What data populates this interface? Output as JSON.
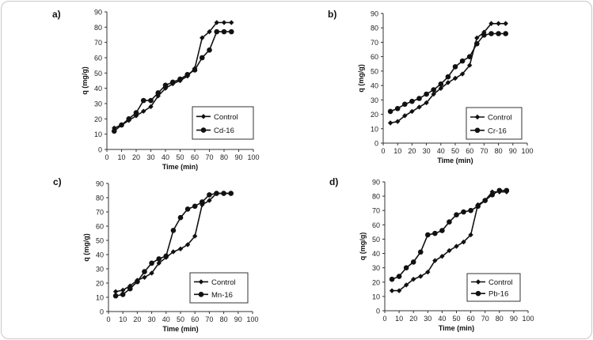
{
  "colors": {
    "line": "#111111",
    "frame": "#c8c8c8"
  },
  "chart_data": [
    {
      "panel_label": "a)",
      "type": "line",
      "xlabel": "Time (min)",
      "ylabel": "q (mg/g)",
      "xlim": [
        0,
        100
      ],
      "ylim": [
        0,
        90
      ],
      "xticks": [
        "0",
        "10",
        "20",
        "30",
        "40",
        "50",
        "60",
        "70",
        "80",
        "90",
        "100"
      ],
      "yticks": [
        "0",
        "10",
        "20",
        "30",
        "40",
        "50",
        "60",
        "70",
        "80",
        "90"
      ],
      "legend_position": "bottom-right",
      "series": [
        {
          "name": "Control",
          "marker": "diamond",
          "x": [
            5,
            10,
            15,
            20,
            25,
            30,
            35,
            40,
            45,
            50,
            55,
            60,
            65,
            70,
            75,
            80,
            85
          ],
          "y": [
            14,
            16,
            19,
            22,
            25,
            28,
            35,
            40,
            43,
            45,
            48,
            53,
            73,
            77,
            83,
            83,
            83
          ]
        },
        {
          "name": "Cd-16",
          "marker": "circle",
          "x": [
            5,
            10,
            15,
            20,
            25,
            30,
            35,
            40,
            45,
            50,
            55,
            60,
            65,
            70,
            75,
            80,
            85
          ],
          "y": [
            12,
            16,
            20,
            24,
            32,
            32,
            37,
            42,
            44,
            46,
            49,
            52,
            60,
            65,
            77,
            77,
            77
          ]
        }
      ]
    },
    {
      "panel_label": "b)",
      "type": "line",
      "xlabel": "Time (min)",
      "ylabel": "q (mg/g)",
      "xlim": [
        0,
        100
      ],
      "ylim": [
        0,
        90
      ],
      "xticks": [
        "0",
        "10",
        "20",
        "30",
        "40",
        "50",
        "60",
        "70",
        "80",
        "90",
        "100"
      ],
      "yticks": [
        "0",
        "10",
        "20",
        "30",
        "40",
        "50",
        "60",
        "70",
        "80",
        "90"
      ],
      "legend_position": "bottom-right",
      "series": [
        {
          "name": "Control",
          "marker": "diamond",
          "x": [
            5,
            10,
            15,
            20,
            25,
            30,
            35,
            40,
            45,
            50,
            55,
            60,
            65,
            70,
            75,
            80,
            85
          ],
          "y": [
            14,
            15,
            19,
            22,
            25,
            28,
            34,
            38,
            42,
            45,
            48,
            54,
            73,
            77,
            83,
            83,
            83
          ]
        },
        {
          "name": "Cr-16",
          "marker": "circle",
          "x": [
            5,
            10,
            15,
            20,
            25,
            30,
            35,
            40,
            45,
            50,
            55,
            60,
            65,
            70,
            75,
            80,
            85
          ],
          "y": [
            22,
            24,
            27,
            29,
            31,
            34,
            37,
            41,
            46,
            53,
            57,
            60,
            69,
            75,
            76,
            76,
            76
          ]
        }
      ]
    },
    {
      "panel_label": "c)",
      "type": "line",
      "xlabel": "Time (min)",
      "ylabel": "q (mg/g)",
      "xlim": [
        0,
        100
      ],
      "ylim": [
        0,
        90
      ],
      "xticks": [
        "0",
        "10",
        "20",
        "30",
        "40",
        "50",
        "60",
        "70",
        "80",
        "90",
        "100"
      ],
      "yticks": [
        "0",
        "10",
        "20",
        "30",
        "40",
        "50",
        "60",
        "70",
        "80",
        "90"
      ],
      "legend_position": "bottom-right",
      "series": [
        {
          "name": "Control",
          "marker": "diamond",
          "x": [
            5,
            10,
            15,
            20,
            25,
            30,
            35,
            40,
            45,
            50,
            55,
            60,
            65,
            70,
            75,
            80,
            85
          ],
          "y": [
            14,
            15,
            18,
            22,
            24,
            27,
            34,
            38,
            42,
            44,
            47,
            53,
            75,
            78,
            83,
            83,
            83
          ]
        },
        {
          "name": "Mn-16",
          "marker": "circle",
          "x": [
            5,
            10,
            15,
            20,
            25,
            30,
            35,
            40,
            45,
            50,
            55,
            60,
            65,
            70,
            75,
            80,
            85
          ],
          "y": [
            11,
            12,
            16,
            21,
            28,
            34,
            37,
            39,
            57,
            66,
            72,
            74,
            77,
            82,
            83,
            83,
            83
          ]
        }
      ]
    },
    {
      "panel_label": "d)",
      "type": "line",
      "xlabel": "Time (min)",
      "ylabel": "q (mg/g)",
      "xlim": [
        0,
        100
      ],
      "ylim": [
        0,
        90
      ],
      "xticks": [
        "0",
        "10",
        "20",
        "30",
        "40",
        "50",
        "60",
        "70",
        "80",
        "90",
        "100"
      ],
      "yticks": [
        "0",
        "10",
        "20",
        "30",
        "40",
        "50",
        "60",
        "70",
        "80",
        "90"
      ],
      "legend_position": "bottom-right",
      "series": [
        {
          "name": "Control",
          "marker": "diamond",
          "x": [
            5,
            10,
            15,
            20,
            25,
            30,
            35,
            40,
            45,
            50,
            55,
            60,
            65,
            70,
            75,
            80,
            85
          ],
          "y": [
            14,
            14,
            18,
            22,
            24,
            27,
            35,
            38,
            42,
            45,
            48,
            53,
            74,
            77,
            83,
            83,
            83
          ]
        },
        {
          "name": "Pb-16",
          "marker": "circle",
          "x": [
            5,
            10,
            15,
            20,
            25,
            30,
            35,
            40,
            45,
            50,
            55,
            60,
            65,
            70,
            75,
            80,
            85
          ],
          "y": [
            22,
            24,
            30,
            34,
            41,
            53,
            54,
            56,
            62,
            67,
            69,
            70,
            73,
            77,
            81,
            84,
            84
          ]
        }
      ]
    }
  ]
}
